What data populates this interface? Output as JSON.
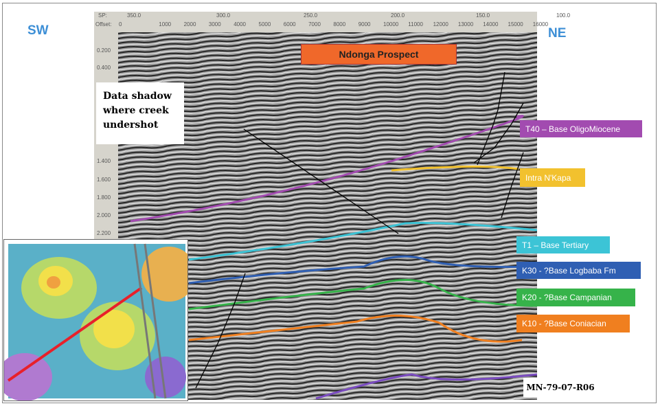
{
  "labels": {
    "sw": "SW",
    "ne": "NE",
    "prospect": "Ndonga Prospect",
    "shadow": "Data shadow where creek undershot",
    "line_id": "MN-79-07-R06"
  },
  "ruler": {
    "sp_label": "SP:",
    "sp_ticks": [
      "350.0",
      "300.0",
      "250.0",
      "200.0",
      "150.0",
      "100.0"
    ],
    "offset_label": "Offset:",
    "offset_ticks": [
      "0",
      "1000",
      "2000",
      "3000",
      "4000",
      "5000",
      "6000",
      "7000",
      "8000",
      "9000",
      "10000",
      "11000",
      "12000",
      "13000",
      "14000",
      "15000",
      "16000"
    ]
  },
  "time_axis": [
    "0.200",
    "0.400",
    "1.400",
    "1.600",
    "1.800",
    "2.000",
    "2.200"
  ],
  "horizons": [
    {
      "name": "T40 – Base OligoMiocene",
      "color": "#a24bb0"
    },
    {
      "name": "Intra N'Kapa",
      "color": "#f2c12e"
    },
    {
      "name": "T1 – Base Tertiary",
      "color": "#3cc4d6"
    },
    {
      "name": "K30 - ?Base Logbaba Fm",
      "color": "#2f5fb3"
    },
    {
      "name": "K20 - ?Base Campanian",
      "color": "#36b34a"
    },
    {
      "name": "K10 - ?Base Coniacian",
      "color": "#f07f1f"
    }
  ],
  "colors": {
    "prospect": "#f0682a",
    "direction": "#3d8fd6",
    "inset_line": "#e8202a"
  }
}
